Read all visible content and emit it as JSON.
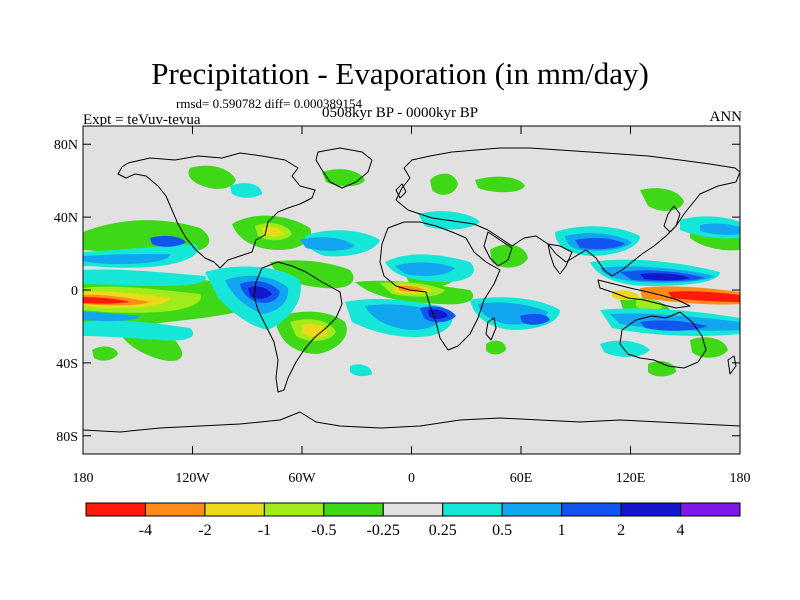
{
  "title": "Precipitation - Evaporation (in mm/day)",
  "stats": "rmsd= 0.590782 diff= 0.000389154",
  "experiment": "Expt = teVuv-tevua",
  "period": "0508kyr BP - 0000kyr BP",
  "season": "ANN",
  "lat_axis": {
    "ticks": [
      80,
      40,
      0,
      -40,
      -80
    ],
    "labels": [
      "80N",
      "40N",
      "0",
      "40S",
      "80S"
    ]
  },
  "lon_axis": {
    "ticks": [
      -180,
      -120,
      -60,
      0,
      60,
      120,
      180
    ],
    "labels": [
      "180",
      "120W",
      "60W",
      "0",
      "60E",
      "120E",
      "180"
    ]
  },
  "colorbar": {
    "colors": [
      "#ff1a0a",
      "#ff8c1a",
      "#ebd91a",
      "#a0ec1a",
      "#3ed817",
      "#e1e1e1",
      "#15e6d8",
      "#12a6f0",
      "#1155ee",
      "#1418cc",
      "#7d1aeb"
    ],
    "labels": [
      "-4",
      "-2",
      "-1",
      "-0.5",
      "-0.25",
      "0.25",
      "0.5",
      "1",
      "2",
      "4"
    ]
  },
  "ocean_color": "#e1e1e1"
}
